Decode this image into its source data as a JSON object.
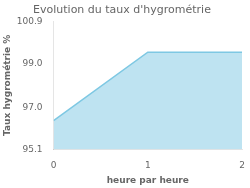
{
  "chart_data": {
    "type": "area",
    "title": "Evolution du taux d'hygrométrie",
    "xlabel": "heure par heure",
    "ylabel": "Taux hygrométrie %",
    "x": [
      0,
      1,
      2
    ],
    "values": [
      96.4,
      99.5,
      99.5
    ],
    "xlim": [
      0,
      2
    ],
    "xticks": [
      0,
      1,
      2
    ],
    "ylim": [
      95.1,
      100.9
    ],
    "yticks": [
      95.1,
      {
        "value": 97.0,
        "label": "97.0"
      },
      {
        "value": 99.0,
        "label": "99.0"
      },
      100.9
    ],
    "color": "#7ec8e3",
    "grid": false
  }
}
